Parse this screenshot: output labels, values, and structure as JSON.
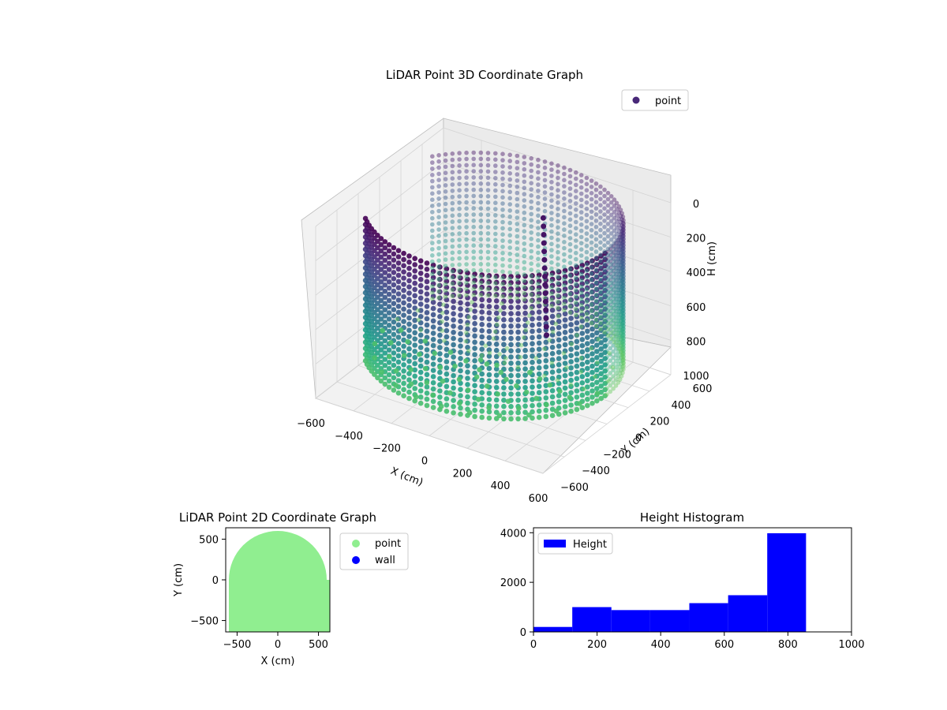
{
  "chart_data": [
    {
      "type": "scatter3d",
      "title": "LiDAR Point 3D Coordinate Graph",
      "xlabel": "X (cm)",
      "ylabel": "Y (cm)",
      "zlabel": "H (cm)",
      "x_ticks": [
        -600,
        -400,
        -200,
        0,
        200,
        400,
        600
      ],
      "y_ticks": [
        -600,
        -400,
        -200,
        0,
        200,
        400,
        600
      ],
      "z_ticks": [
        0,
        200,
        400,
        600,
        800,
        1000
      ],
      "xlim": [
        -600,
        600
      ],
      "ylim": [
        -600,
        600
      ],
      "zlim": [
        0,
        1000
      ],
      "z_inverted": true,
      "colormap": "viridis",
      "legend": {
        "position": "top-right",
        "entries": [
          {
            "label": "point",
            "color": "#482878"
          }
        ]
      },
      "shape": {
        "kind": "cylindrical wall",
        "radius_cm": 600,
        "height_cm": 860,
        "open_sector_deg": [
          150,
          220
        ]
      },
      "grid": true
    },
    {
      "type": "scatter",
      "title": "LiDAR Point 2D Coordinate Graph",
      "xlabel": "X (cm)",
      "ylabel": "Y (cm)",
      "x_ticks": [
        -500,
        0,
        500
      ],
      "y_ticks": [
        -500,
        0,
        500
      ],
      "xlim": [
        -640,
        640
      ],
      "ylim": [
        -640,
        640
      ],
      "series": [
        {
          "name": "point",
          "color": "#90ee90",
          "region": "filled disc r≈600 cm, clipped by axes"
        },
        {
          "name": "wall",
          "color": "#0000ff",
          "region": "none visible"
        }
      ],
      "legend": {
        "position": "outside-right"
      }
    },
    {
      "type": "bar",
      "title": "Height Histogram",
      "xlabel": "",
      "ylabel": "",
      "xlim": [
        0,
        1000
      ],
      "ylim": [
        0,
        4200
      ],
      "x_ticks": [
        0,
        200,
        400,
        600,
        800,
        1000
      ],
      "y_ticks": [
        0,
        2000,
        4000
      ],
      "bin_edges": [
        0,
        122,
        245,
        367,
        490,
        612,
        735,
        857
      ],
      "series": [
        {
          "name": "Height",
          "color": "#0000ff",
          "values": [
            200,
            1000,
            880,
            880,
            1160,
            1480,
            3980
          ]
        }
      ],
      "legend": {
        "position": "top-left"
      }
    }
  ]
}
